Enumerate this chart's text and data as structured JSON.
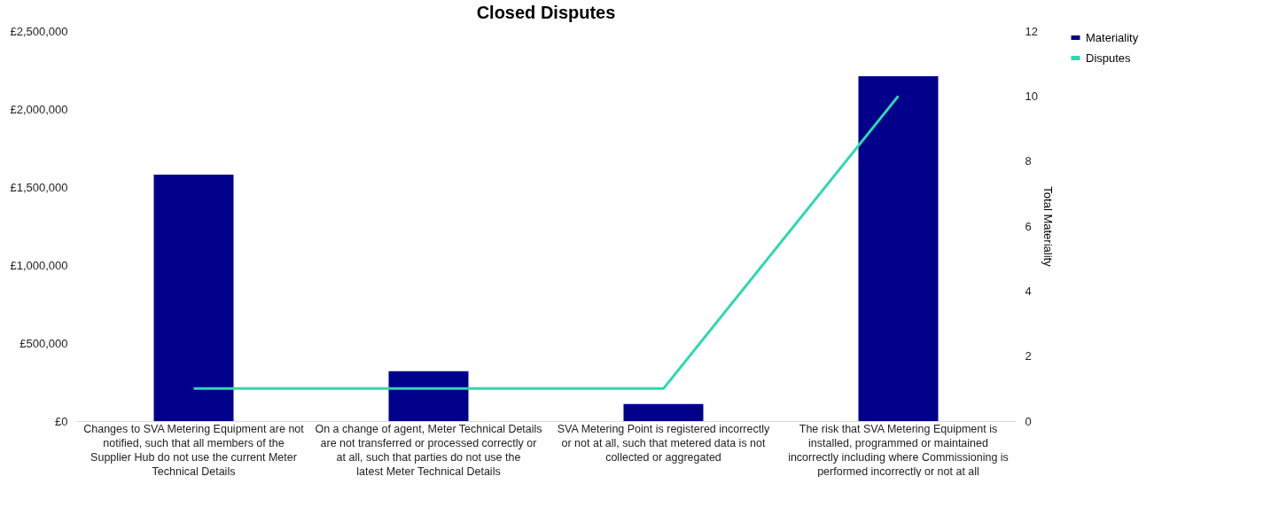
{
  "chart_data": {
    "type": "bar",
    "title": "Closed Disputes",
    "y2label": "Total Materiality",
    "categories": [
      "Changes to SVA Metering Equipment are not notified, such that all members of the Supplier Hub do not use the current Meter Technical Details",
      "On a change of agent, Meter Technical Details are not transferred or processed correctly or at all, such that parties do not use the latest Meter Technical Details",
      "SVA Metering Point is registered incorrectly or not at all, such that metered data is not collected or aggregated",
      "The risk that SVA Metering Equipment is installed, programmed or maintained incorrectly including where Commissioning is performed incorrectly or not at all"
    ],
    "series": [
      {
        "name": "Materiality",
        "color": "#00008b",
        "values": [
          1580000,
          320000,
          110000,
          2210000
        ]
      },
      {
        "name": "Disputes",
        "type": "line",
        "axis": "y2",
        "color": "#2ed8b0",
        "values": [
          1,
          1,
          1,
          10
        ]
      }
    ],
    "ylim": [
      0,
      2500000
    ],
    "yticks": [
      {
        "value": 0,
        "label": "£0"
      },
      {
        "value": 500000,
        "label": "£500,000"
      },
      {
        "value": 1000000,
        "label": "£1,000,000"
      },
      {
        "value": 1500000,
        "label": "£1,500,000"
      },
      {
        "value": 2000000,
        "label": "£2,000,000"
      },
      {
        "value": 2500000,
        "label": "£2,500,000"
      }
    ],
    "y2lim": [
      0,
      12
    ],
    "y2ticks": [
      0,
      2,
      4,
      6,
      8,
      10,
      12
    ],
    "grid": false,
    "legend": "right",
    "marker": "none",
    "line_style": "solid"
  }
}
